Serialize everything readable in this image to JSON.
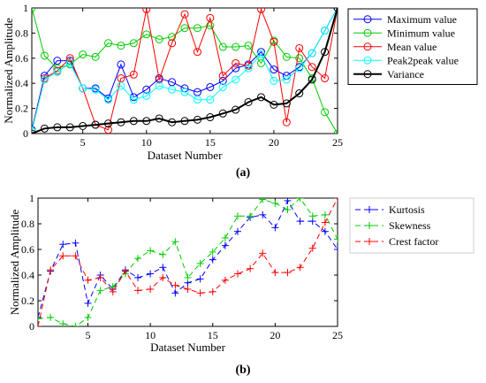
{
  "charts": [
    {
      "panel": "a",
      "caption": "(a)",
      "xlabel": "Dataset Number",
      "ylabel": "Normalized Amplitude",
      "legend_position": "top-right",
      "colors": {
        "Maximum value": "#0000ff",
        "Minimum value": "#00cc00",
        "Mean value": "#ff0000",
        "Peak2peak value": "#00ffff",
        "Variance": "#000000"
      }
    },
    {
      "panel": "b",
      "caption": "(b)",
      "xlabel": "Dataset Number",
      "ylabel": "Normalized Amplitude",
      "legend_position": "outside-right",
      "colors": {
        "Kurtosis": "#0000ff",
        "Skewness": "#00cc00",
        "Crest factor": "#ff0000"
      }
    }
  ],
  "chart_data": [
    {
      "type": "line",
      "xlabel": "Dataset Number",
      "ylabel": "Normalized Amplitude",
      "xlim": [
        1,
        25
      ],
      "ylim": [
        0,
        1
      ],
      "xticks": [
        5,
        10,
        15,
        20,
        25
      ],
      "yticks": [
        0,
        0.2,
        0.4,
        0.6,
        0.8,
        1
      ],
      "grid": false,
      "legend": "top-right",
      "series": [
        {
          "name": "Maximum value",
          "marker": "circle",
          "linestyle": "solid",
          "lines_only": false,
          "x": [
            1,
            2,
            3,
            4,
            5,
            6,
            7,
            8,
            9,
            10,
            11,
            12,
            13,
            14,
            15,
            16,
            17,
            18,
            19,
            20,
            21,
            22,
            23,
            24,
            25
          ],
          "values": [
            0.03,
            0.46,
            0.58,
            0.58,
            0.36,
            0.36,
            0.28,
            0.55,
            0.29,
            0.35,
            0.44,
            0.41,
            0.36,
            0.33,
            0.37,
            0.42,
            0.52,
            0.55,
            0.65,
            0.51,
            0.46,
            0.53,
            0.64,
            0.82,
            1.0
          ]
        },
        {
          "name": "Minimum value",
          "marker": "circle",
          "linestyle": "solid",
          "lines_only": false,
          "x": [
            1,
            2,
            3,
            4,
            5,
            6,
            7,
            8,
            9,
            10,
            11,
            12,
            13,
            14,
            15,
            16,
            17,
            18,
            19,
            20,
            21,
            22,
            23,
            24,
            25
          ],
          "values": [
            1.0,
            0.62,
            0.52,
            0.55,
            0.63,
            0.61,
            0.72,
            0.7,
            0.72,
            0.79,
            0.75,
            0.77,
            0.84,
            0.84,
            0.86,
            0.69,
            0.69,
            0.7,
            0.56,
            0.74,
            0.61,
            0.6,
            0.44,
            0.17,
            0.0
          ]
        },
        {
          "name": "Mean value",
          "marker": "circle",
          "linestyle": "solid",
          "lines_only": false,
          "x": [
            1,
            2,
            3,
            4,
            5,
            6,
            7,
            8,
            9,
            10,
            11,
            12,
            13,
            14,
            15,
            16,
            17,
            18,
            19,
            20,
            21,
            22,
            23,
            24,
            25
          ],
          "values": [
            0.02,
            0.44,
            0.5,
            0.6,
            0.36,
            0.07,
            0.03,
            0.44,
            0.47,
            0.99,
            0.43,
            0.72,
            0.95,
            0.65,
            0.92,
            0.46,
            0.56,
            0.54,
            0.99,
            0.73,
            0.09,
            0.68,
            0.53,
            0.44,
            1.0
          ]
        },
        {
          "name": "Peak2peak value",
          "marker": "circle",
          "linestyle": "solid",
          "lines_only": false,
          "x": [
            1,
            2,
            3,
            4,
            5,
            6,
            7,
            8,
            9,
            10,
            11,
            12,
            13,
            14,
            15,
            16,
            17,
            18,
            19,
            20,
            21,
            22,
            23,
            24,
            25
          ],
          "values": [
            0.02,
            0.43,
            0.49,
            0.56,
            0.36,
            0.35,
            0.27,
            0.38,
            0.27,
            0.3,
            0.38,
            0.35,
            0.33,
            0.27,
            0.27,
            0.37,
            0.43,
            0.52,
            0.63,
            0.42,
            0.43,
            0.52,
            0.64,
            0.82,
            1.0
          ]
        },
        {
          "name": "Variance",
          "marker": "circle",
          "linestyle": "solid",
          "lines_only": false,
          "x": [
            1,
            2,
            3,
            4,
            5,
            6,
            7,
            8,
            9,
            10,
            11,
            12,
            13,
            14,
            15,
            16,
            17,
            18,
            19,
            20,
            21,
            22,
            23,
            24,
            25
          ],
          "values": [
            0.0,
            0.04,
            0.05,
            0.05,
            0.06,
            0.07,
            0.08,
            0.09,
            0.1,
            0.1,
            0.12,
            0.09,
            0.1,
            0.11,
            0.13,
            0.16,
            0.19,
            0.25,
            0.29,
            0.23,
            0.24,
            0.32,
            0.43,
            0.65,
            1.0
          ]
        }
      ]
    },
    {
      "type": "line",
      "xlabel": "Dataset Number",
      "ylabel": "Normalized Amplitude",
      "xlim": [
        1,
        25
      ],
      "ylim": [
        0,
        1
      ],
      "xticks": [
        5,
        10,
        15,
        20,
        25
      ],
      "yticks": [
        0,
        0.2,
        0.4,
        0.6,
        0.8,
        1
      ],
      "grid": false,
      "legend": "outside-right",
      "series": [
        {
          "name": "Kurtosis",
          "marker": "plus",
          "linestyle": "dashed",
          "lines_only": false,
          "x": [
            1,
            2,
            3,
            4,
            5,
            6,
            7,
            8,
            9,
            10,
            11,
            12,
            13,
            14,
            15,
            16,
            17,
            18,
            19,
            20,
            21,
            22,
            23,
            24,
            25
          ],
          "values": [
            0.07,
            0.43,
            0.64,
            0.65,
            0.18,
            0.4,
            0.29,
            0.44,
            0.38,
            0.41,
            0.46,
            0.26,
            0.34,
            0.37,
            0.52,
            0.63,
            0.74,
            0.85,
            0.87,
            0.77,
            0.98,
            0.82,
            0.82,
            0.74,
            0.6
          ]
        },
        {
          "name": "Skewness",
          "marker": "plus",
          "linestyle": "dashed",
          "lines_only": false,
          "x": [
            1,
            2,
            3,
            4,
            5,
            6,
            7,
            8,
            9,
            10,
            11,
            12,
            13,
            14,
            15,
            16,
            17,
            18,
            19,
            20,
            21,
            22,
            23,
            24,
            25
          ],
          "values": [
            0.06,
            0.07,
            0.02,
            0.0,
            0.07,
            0.28,
            0.31,
            0.41,
            0.53,
            0.59,
            0.56,
            0.66,
            0.38,
            0.49,
            0.58,
            0.69,
            0.86,
            0.86,
            0.99,
            0.96,
            0.91,
            1.0,
            0.86,
            0.87,
            0.68
          ]
        },
        {
          "name": "Crest factor",
          "marker": "plus",
          "linestyle": "dashed",
          "lines_only": false,
          "x": [
            1,
            2,
            3,
            4,
            5,
            6,
            7,
            8,
            9,
            10,
            11,
            12,
            13,
            14,
            15,
            16,
            17,
            18,
            19,
            20,
            21,
            22,
            23,
            24,
            25
          ],
          "values": [
            0.0,
            0.44,
            0.55,
            0.55,
            0.36,
            0.38,
            0.27,
            0.43,
            0.28,
            0.29,
            0.38,
            0.32,
            0.29,
            0.26,
            0.27,
            0.36,
            0.41,
            0.45,
            0.57,
            0.42,
            0.42,
            0.46,
            0.61,
            0.81,
            1.0
          ]
        }
      ]
    }
  ]
}
